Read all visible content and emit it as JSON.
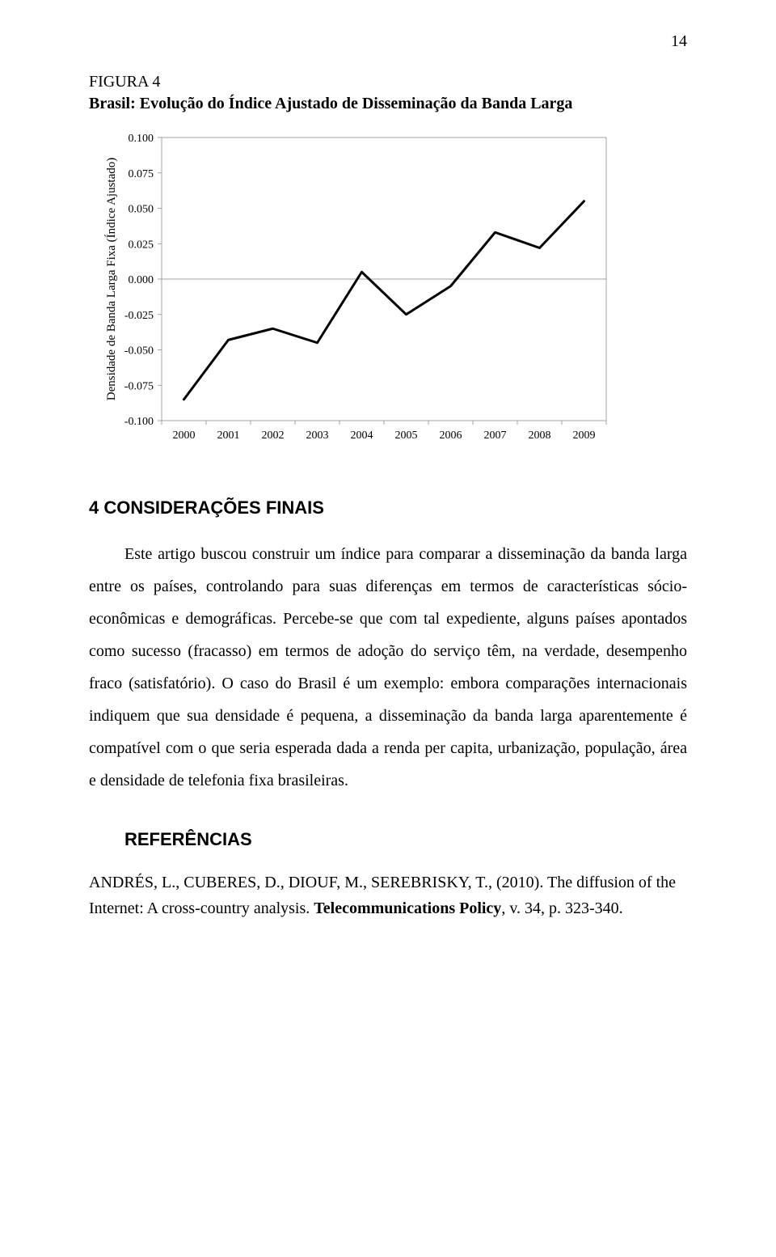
{
  "page_number": "14",
  "figure": {
    "label": "FIGURA 4",
    "title": "Brasil: Evolução do Índice Ajustado de Disseminação da Banda Larga"
  },
  "chart": {
    "type": "line",
    "ylabel": "Densidade de Banda Larga Fixa (Índice Ajustado)",
    "x_categories": [
      "2000",
      "2001",
      "2002",
      "2003",
      "2004",
      "2005",
      "2006",
      "2007",
      "2008",
      "2009"
    ],
    "y_values": [
      -0.085,
      -0.043,
      -0.035,
      -0.045,
      0.005,
      -0.025,
      -0.005,
      0.033,
      0.022,
      0.055
    ],
    "y_ticks": [
      {
        "val": -0.1,
        "label": "-0.100"
      },
      {
        "val": -0.075,
        "label": "-0.075"
      },
      {
        "val": -0.05,
        "label": "-0.050"
      },
      {
        "val": -0.025,
        "label": "-0.025"
      },
      {
        "val": 0.0,
        "label": "0.000"
      },
      {
        "val": 0.025,
        "label": "0.025"
      },
      {
        "val": 0.05,
        "label": "0.050"
      },
      {
        "val": 0.075,
        "label": "0.075"
      },
      {
        "val": 0.1,
        "label": "0.100"
      }
    ],
    "ylim": [
      -0.1,
      0.1
    ],
    "line_color": "#000000",
    "line_width": 3,
    "background_color": "#ffffff",
    "grid_color": "#808080",
    "tick_font_size": 14,
    "ylabel_font_size": 15
  },
  "section": {
    "heading": "4  CONSIDERAÇÕES FINAIS",
    "paragraph": "Este artigo buscou construir um índice para comparar a disseminação da banda larga entre os países, controlando para suas diferenças em termos de características sócio-econômicas e demográficas. Percebe-se que com tal expediente, alguns países apontados como sucesso (fracasso) em termos de adoção do serviço têm, na verdade, desempenho fraco (satisfatório). O caso do Brasil é um exemplo: embora comparações internacionais indiquem que sua densidade é pequena, a disseminação da banda larga aparentemente é compatível com o que seria esperada dada a renda per capita, urbanização, população, área e densidade de telefonia fixa brasileiras."
  },
  "references": {
    "heading": "REFERÊNCIAS",
    "entry_prefix": "ANDRÉS, L., CUBERES, D., DIOUF, M., SEREBRISKY, T., (2010). The diffusion of the Internet: A cross-country analysis. ",
    "entry_bold": "Telecommunications Policy",
    "entry_suffix": ", v. 34, p. 323-340."
  }
}
